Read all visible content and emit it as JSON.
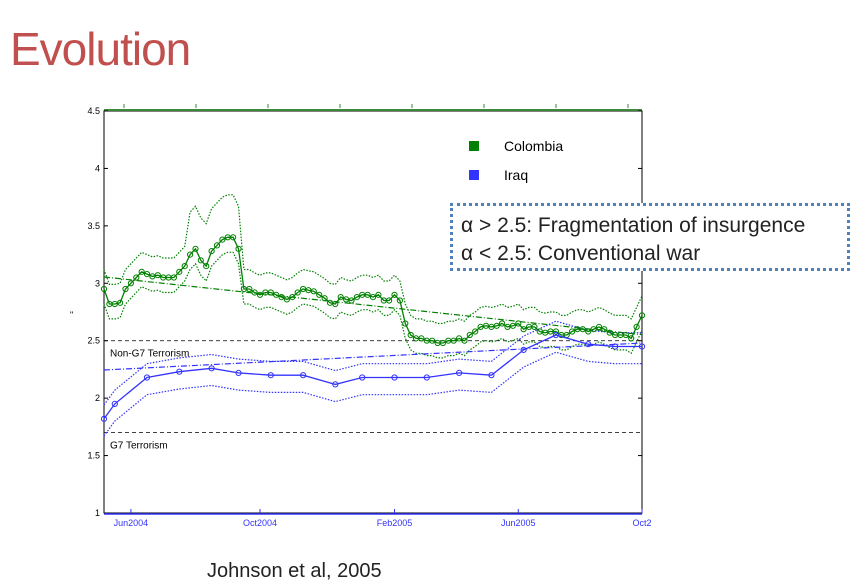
{
  "slide": {
    "title": "Evolution",
    "citation": "Johnson et al, 2005",
    "callout": {
      "line1": "α > 2.5: Fragmentation of insurgence",
      "line2": "α < 2.5: Conventional war"
    }
  },
  "chart_data": {
    "type": "line",
    "ylim": [
      1,
      4.5
    ],
    "yticks": [
      "1",
      "1.5",
      "2",
      "2.5",
      "3",
      "3.5",
      "4",
      "4.5"
    ],
    "xlim": [
      0,
      100
    ],
    "xticks": [
      {
        "label": "Jun2004",
        "x": 5
      },
      {
        "label": "Oct2004",
        "x": 29
      },
      {
        "label": "Feb2005",
        "x": 54
      },
      {
        "label": "Jun2005",
        "x": 77
      },
      {
        "label": "Oct2",
        "x": 100
      }
    ],
    "legend": {
      "placement": "top-right",
      "entries": [
        {
          "label": "Colombia",
          "color": "#008000"
        },
        {
          "label": "Iraq",
          "color": "#3333ff"
        }
      ]
    },
    "reference_lines": [
      {
        "label": "Non-G7 Terrorism",
        "y": 2.5
      },
      {
        "label": "G7 Terrorism",
        "y": 1.7
      }
    ],
    "series": [
      {
        "name": "Colombia",
        "color": "#008000",
        "x": [
          0,
          1,
          2,
          3,
          4,
          5,
          6,
          7,
          8,
          9,
          10,
          11,
          12,
          13,
          14,
          15,
          16,
          17,
          18,
          19,
          20,
          21,
          22,
          23,
          24,
          25,
          26,
          27,
          28,
          29,
          30,
          31,
          32,
          33,
          34,
          35,
          36,
          37,
          38,
          39,
          40,
          41,
          42,
          43,
          44,
          45,
          46,
          47,
          48,
          49,
          50,
          51,
          52,
          53,
          54,
          55,
          56,
          57,
          58,
          59,
          60,
          61,
          62,
          63,
          64,
          65,
          66,
          67,
          68,
          69,
          70,
          71,
          72,
          73,
          74,
          75,
          76,
          77,
          78,
          79,
          80,
          81,
          82,
          83,
          84,
          85,
          86,
          87,
          88,
          89,
          90,
          91,
          92,
          93,
          94,
          95,
          96,
          97,
          98,
          99,
          100
        ],
        "values": [
          2.95,
          2.82,
          2.82,
          2.83,
          2.95,
          3.0,
          3.05,
          3.1,
          3.08,
          3.06,
          3.07,
          3.05,
          3.05,
          3.05,
          3.1,
          3.15,
          3.25,
          3.3,
          3.2,
          3.15,
          3.28,
          3.33,
          3.38,
          3.4,
          3.4,
          3.3,
          2.95,
          2.95,
          2.92,
          2.9,
          2.92,
          2.92,
          2.9,
          2.88,
          2.86,
          2.88,
          2.92,
          2.95,
          2.94,
          2.93,
          2.9,
          2.87,
          2.83,
          2.82,
          2.88,
          2.86,
          2.85,
          2.88,
          2.9,
          2.9,
          2.88,
          2.9,
          2.85,
          2.85,
          2.9,
          2.85,
          2.65,
          2.55,
          2.52,
          2.52,
          2.5,
          2.5,
          2.48,
          2.48,
          2.5,
          2.5,
          2.52,
          2.5,
          2.55,
          2.58,
          2.62,
          2.63,
          2.62,
          2.63,
          2.65,
          2.62,
          2.63,
          2.65,
          2.6,
          2.62,
          2.62,
          2.58,
          2.57,
          2.58,
          2.58,
          2.55,
          2.55,
          2.58,
          2.6,
          2.6,
          2.58,
          2.6,
          2.62,
          2.6,
          2.57,
          2.55,
          2.55,
          2.55,
          2.52,
          2.62,
          2.72
        ]
      },
      {
        "name": "Iraq",
        "color": "#3333ff",
        "x": [
          0,
          2,
          8,
          14,
          20,
          25,
          31,
          37,
          43,
          48,
          54,
          60,
          66,
          72,
          78,
          84,
          90,
          95,
          100
        ],
        "values": [
          1.82,
          1.95,
          2.18,
          2.23,
          2.26,
          2.22,
          2.2,
          2.2,
          2.12,
          2.18,
          2.18,
          2.18,
          2.22,
          2.2,
          2.42,
          2.55,
          2.47,
          2.45,
          2.45
        ]
      }
    ]
  }
}
